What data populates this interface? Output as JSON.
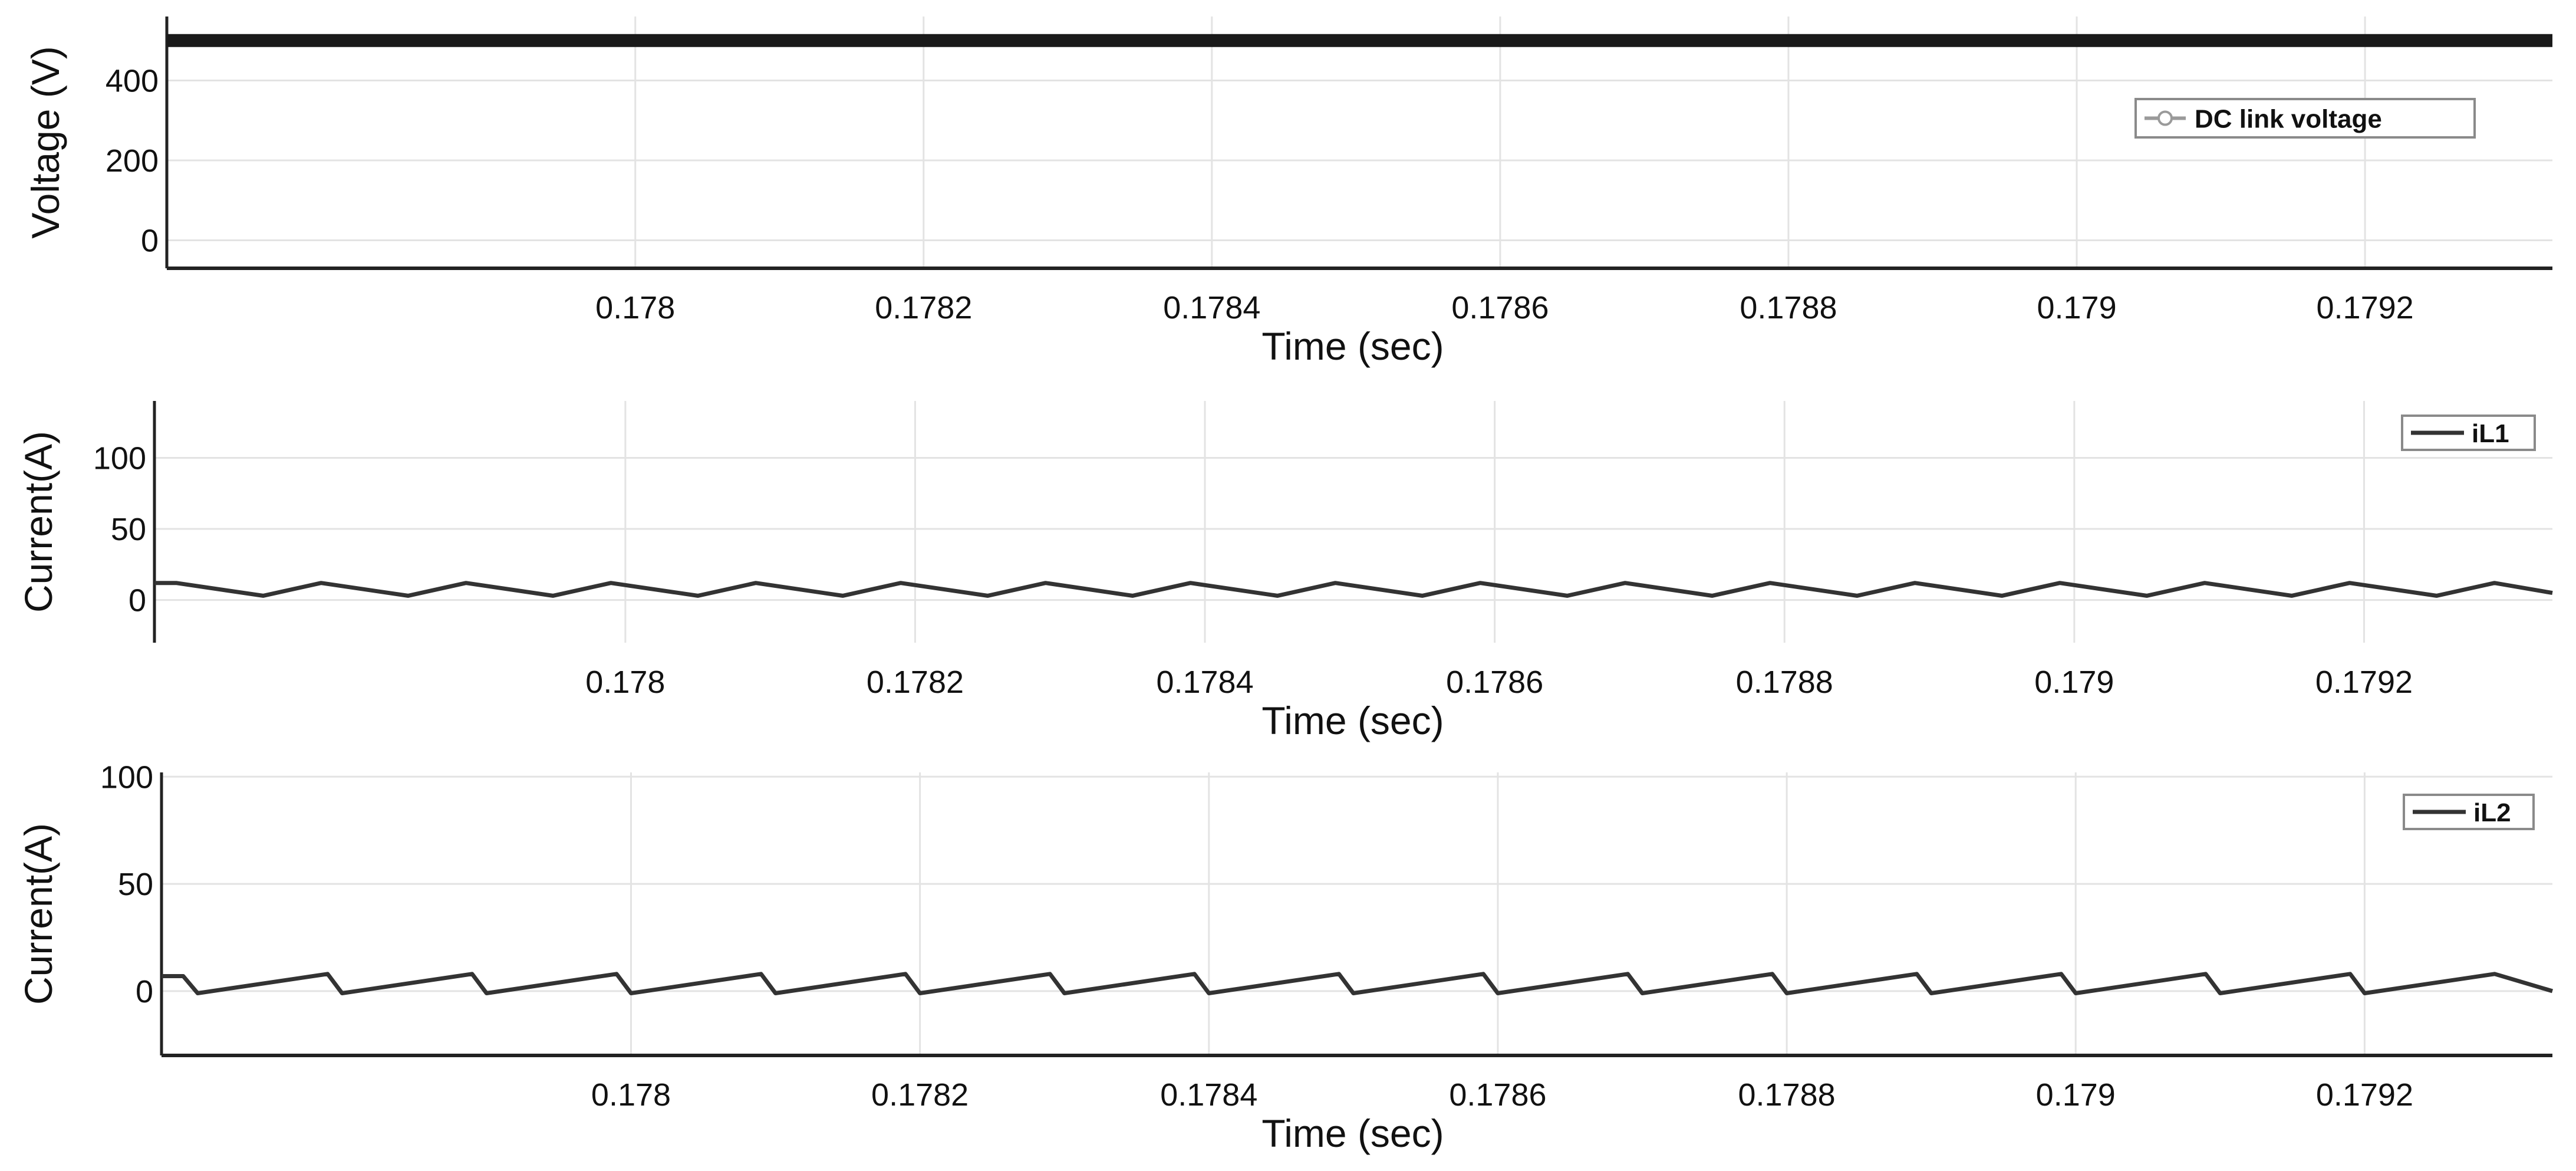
{
  "chart_data": [
    {
      "type": "line",
      "title": "",
      "xlabel": "Time (sec)",
      "ylabel": "Voltage (V)",
      "xlim": [
        0.177675,
        0.17933
      ],
      "ylim": [
        -70,
        560
      ],
      "x_ticks": [
        0.178,
        0.1782,
        0.1784,
        0.1786,
        0.1788,
        0.179,
        0.1792
      ],
      "x_tick_labels": [
        "0.178",
        "0.1782",
        "0.1784",
        "0.1786",
        "0.1788",
        "0.179",
        "0.1792"
      ],
      "y_ticks": [
        0,
        200,
        400
      ],
      "y_tick_labels": [
        "0",
        "200",
        "400"
      ],
      "grid": true,
      "legend_position": "top-right",
      "legend_marker": "circle",
      "series": [
        {
          "name": "DC link voltage",
          "color": "#1a1a1a",
          "x": [
            0.177675,
            0.17933
          ],
          "y": [
            500,
            500
          ]
        }
      ]
    },
    {
      "type": "line",
      "title": "",
      "xlabel": "Time (sec)",
      "ylabel": "Current(A)",
      "xlim": [
        0.177675,
        0.17933
      ],
      "ylim": [
        -30,
        140
      ],
      "x_ticks": [
        0.178,
        0.1782,
        0.1784,
        0.1786,
        0.1788,
        0.179,
        0.1792
      ],
      "x_tick_labels": [
        "0.178",
        "0.1782",
        "0.1784",
        "0.1786",
        "0.1788",
        "0.179",
        "0.1792"
      ],
      "y_ticks": [
        0,
        50,
        100
      ],
      "y_tick_labels": [
        "0",
        "50",
        "100"
      ],
      "grid": true,
      "legend_position": "top-right",
      "series": [
        {
          "name": "iL1",
          "color": "#333333",
          "waveform": "triangular ripple",
          "period": 0.0001,
          "min": 3,
          "max": 12,
          "x": [
            0.177675,
            0.17769,
            0.17775,
            0.17779,
            0.17785,
            0.17789,
            0.17795,
            0.17799,
            0.17805,
            0.17809,
            0.17815,
            0.17819,
            0.17825,
            0.17829,
            0.17835,
            0.17839,
            0.17845,
            0.17849,
            0.17855,
            0.17859,
            0.17865,
            0.17869,
            0.17875,
            0.17879,
            0.17885,
            0.17889,
            0.17895,
            0.17899,
            0.17905,
            0.17909,
            0.17915,
            0.17919,
            0.17925,
            0.17929,
            0.17933
          ],
          "y": [
            12,
            12,
            3,
            12,
            3,
            12,
            3,
            12,
            3,
            12,
            3,
            12,
            3,
            12,
            3,
            12,
            3,
            12,
            3,
            12,
            3,
            12,
            3,
            12,
            3,
            12,
            3,
            12,
            3,
            12,
            3,
            12,
            3,
            12,
            5
          ]
        }
      ]
    },
    {
      "type": "line",
      "title": "",
      "xlabel": "Time (sec)",
      "ylabel": "Current(A)",
      "xlim": [
        0.177675,
        0.17933
      ],
      "ylim": [
        -30,
        102
      ],
      "x_ticks": [
        0.178,
        0.1782,
        0.1784,
        0.1786,
        0.1788,
        0.179,
        0.1792
      ],
      "x_tick_labels": [
        "0.178",
        "0.1782",
        "0.1784",
        "0.1786",
        "0.1788",
        "0.179",
        "0.1792"
      ],
      "y_ticks": [
        0,
        50,
        100
      ],
      "y_tick_labels": [
        "0",
        "50",
        "100"
      ],
      "grid": true,
      "legend_position": "top-right",
      "series": [
        {
          "name": "iL2",
          "color": "#333333",
          "waveform": "sawtooth ripple",
          "period": 0.0001,
          "min": -1,
          "max": 8,
          "x": [
            0.177675,
            0.17769,
            0.1777,
            0.17779,
            0.1778,
            0.17789,
            0.1779,
            0.17799,
            0.178,
            0.17809,
            0.1781,
            0.17819,
            0.1782,
            0.17829,
            0.1783,
            0.17839,
            0.1784,
            0.17849,
            0.1785,
            0.17859,
            0.1786,
            0.17869,
            0.1787,
            0.17879,
            0.1788,
            0.17889,
            0.1789,
            0.17899,
            0.179,
            0.17909,
            0.1791,
            0.17919,
            0.1792,
            0.17929,
            0.17933
          ],
          "y": [
            7,
            7,
            -1,
            8,
            -1,
            8,
            -1,
            8,
            -1,
            8,
            -1,
            8,
            -1,
            8,
            -1,
            8,
            -1,
            8,
            -1,
            8,
            -1,
            8,
            -1,
            8,
            -1,
            8,
            -1,
            8,
            -1,
            8,
            -1,
            8,
            -1,
            8,
            0
          ]
        }
      ]
    }
  ]
}
